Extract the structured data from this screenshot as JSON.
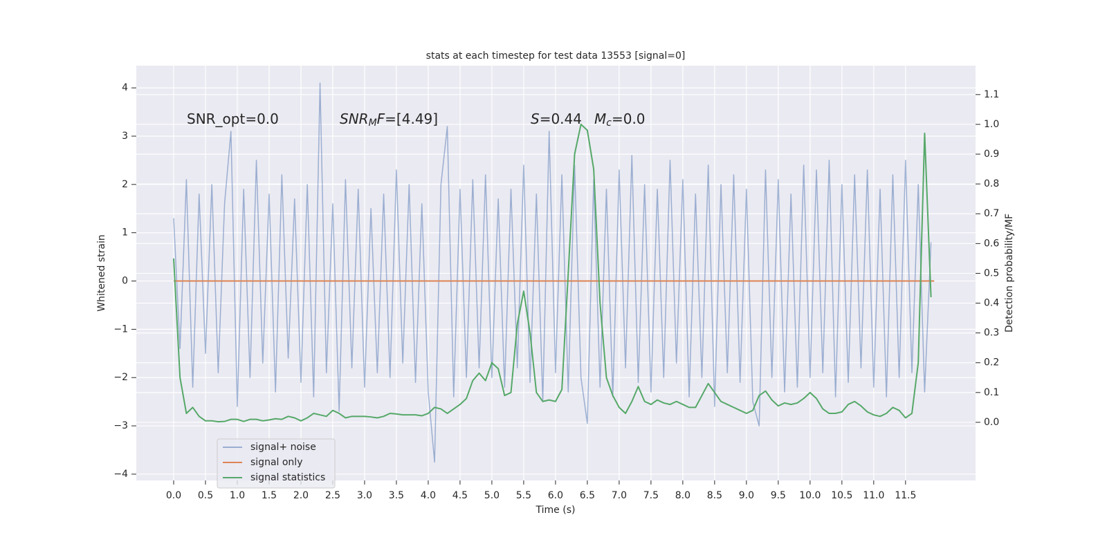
{
  "chart_data": {
    "type": "line",
    "title": "stats at each timestep for test data 13553 [signal=0]",
    "x_label": "Time (s)",
    "y_label": "Whitened strain",
    "y2_label": "Detection probability/MF",
    "background": "#eaeaf2",
    "grid": true,
    "grid_color": "#ffffff",
    "legend_position": "lower left",
    "annotations": [
      [
        {
          "text": "SNR_opt=0.0",
          "style": "normal"
        }
      ],
      [
        {
          "text": "SNR",
          "style": "italic"
        },
        {
          "text": "M",
          "style": "sub"
        },
        {
          "text": "F",
          "style": "italic"
        },
        {
          "text": "=[4.49]",
          "style": "normal"
        }
      ],
      [
        {
          "text": "S",
          "style": "italic"
        },
        {
          "text": "=0.44",
          "style": "normal"
        }
      ],
      [
        {
          "text": "M",
          "style": "italic"
        },
        {
          "text": "c",
          "style": "sub"
        },
        {
          "text": "=0.0",
          "style": "normal"
        }
      ]
    ],
    "xlim": [
      -0.587,
      12.6
    ],
    "xticks": [
      {
        "value": 0,
        "label": "0.0"
      },
      0.5,
      {
        "value": 1,
        "label": "1.0"
      },
      1.5,
      {
        "value": 2,
        "label": "2.0"
      },
      2.5,
      {
        "value": 3,
        "label": "3.0"
      },
      3.5,
      {
        "value": 4,
        "label": "4.0"
      },
      4.5,
      {
        "value": 5,
        "label": "5.0"
      },
      5.5,
      {
        "value": 6,
        "label": "6.0"
      },
      6.5,
      {
        "value": 7,
        "label": "7.0"
      },
      7.5,
      {
        "value": 8,
        "label": "8.0"
      },
      8.5,
      {
        "value": 9,
        "label": "9.0"
      },
      9.5,
      {
        "value": 10,
        "label": "10.0"
      },
      10.5,
      {
        "value": 11,
        "label": "11.0"
      },
      11.5
    ],
    "ylim": [
      -4.13,
      4.46
    ],
    "yticks": [
      {
        "value": -4,
        "label": "−4"
      },
      {
        "value": -3,
        "label": "−3"
      },
      {
        "value": -2,
        "label": "−2"
      },
      {
        "value": -1,
        "label": "−1"
      },
      0,
      1,
      2,
      3,
      4
    ],
    "y2lim": [
      -0.195,
      1.197
    ],
    "y2ticks": [
      {
        "value": 0,
        "label": "0.0"
      },
      0.1,
      0.2,
      0.3,
      0.4,
      0.5,
      0.6,
      0.7,
      0.8,
      0.9,
      {
        "value": 1,
        "label": "1.0"
      },
      1.1
    ],
    "x": [
      0,
      0.1,
      0.2,
      0.3,
      0.4,
      0.5,
      0.6,
      0.7,
      0.8,
      0.9,
      1,
      1.1,
      1.2,
      1.3,
      1.4,
      1.5,
      1.6,
      1.7,
      1.8,
      1.9,
      2,
      2.1,
      2.2,
      2.3,
      2.4,
      2.5,
      2.6,
      2.7,
      2.8,
      2.9,
      3,
      3.1,
      3.2,
      3.3,
      3.4,
      3.5,
      3.6,
      3.7,
      3.8,
      3.9,
      4,
      4.1,
      4.2,
      4.3,
      4.4,
      4.5,
      4.6,
      4.7,
      4.8,
      4.9,
      5,
      5.1,
      5.2,
      5.3,
      5.4,
      5.5,
      5.6,
      5.7,
      5.8,
      5.9,
      6,
      6.1,
      6.2,
      6.3,
      6.4,
      6.5,
      6.6,
      6.7,
      6.8,
      6.9,
      7,
      7.1,
      7.2,
      7.3,
      7.4,
      7.5,
      7.6,
      7.7,
      7.8,
      7.9,
      8,
      8.1,
      8.2,
      8.3,
      8.4,
      8.5,
      8.6,
      8.7,
      8.8,
      8.9,
      9,
      9.1,
      9.2,
      9.3,
      9.4,
      9.5,
      9.6,
      9.7,
      9.8,
      9.9,
      10,
      10.1,
      10.2,
      10.3,
      10.4,
      10.5,
      10.6,
      10.7,
      10.8,
      10.9,
      11,
      11.1,
      11.2,
      11.3,
      11.4,
      11.5,
      11.6,
      11.7,
      11.8,
      11.9
    ],
    "series": [
      {
        "name": "signal+ noise",
        "color": "#4c72b0",
        "alpha": 0.5,
        "values": [
          1.3,
          -1.4,
          2.1,
          -2.2,
          1.8,
          -1.5,
          2.0,
          -1.9,
          1.6,
          3.1,
          -2.6,
          1.9,
          -2.0,
          2.5,
          -1.7,
          1.8,
          -2.3,
          2.2,
          -1.6,
          1.7,
          -2.1,
          2.0,
          -2.4,
          4.1,
          -1.9,
          1.6,
          -2.7,
          2.1,
          -1.8,
          1.9,
          -2.2,
          1.5,
          -1.9,
          1.8,
          -2.0,
          2.3,
          -1.7,
          2.0,
          -2.1,
          1.6,
          -2.3,
          -3.75,
          2.0,
          3.2,
          -2.4,
          1.9,
          -2.0,
          2.1,
          -1.8,
          2.2,
          -2.0,
          1.7,
          -2.2,
          1.9,
          -1.8,
          2.4,
          -2.1,
          1.8,
          -2.5,
          3.1,
          -1.9,
          2.2,
          -2.3,
          2.4,
          -2.0,
          -2.95,
          2.1,
          -2.2,
          1.9,
          -2.4,
          2.3,
          -1.8,
          2.6,
          -2.1,
          2.0,
          -2.3,
          1.9,
          -2.0,
          2.5,
          -1.7,
          2.1,
          -2.4,
          1.8,
          -2.0,
          2.4,
          -2.6,
          2.0,
          -1.9,
          2.2,
          -2.1,
          1.9,
          -2.5,
          -3.0,
          2.3,
          -2.0,
          2.1,
          -2.3,
          1.8,
          -2.2,
          2.4,
          -2.0,
          2.3,
          -1.9,
          2.5,
          -2.4,
          2.0,
          -2.1,
          2.2,
          -1.8,
          2.3,
          -2.2,
          1.9,
          -2.4,
          2.2,
          -2.0,
          2.5,
          -1.9,
          2.0,
          -2.3,
          0.8
        ]
      },
      {
        "name": "signal only",
        "color": "#dd8452",
        "alpha": 1,
        "x": [
          0,
          11.95
        ],
        "values": [
          0,
          0
        ]
      },
      {
        "name": "signal statistics",
        "color": "#55a868",
        "alpha": 1,
        "axis": "y2",
        "values": [
          0.55,
          0.15,
          0.03,
          0.05,
          0.02,
          0.005,
          0.005,
          0.002,
          0.003,
          0.01,
          0.01,
          0.003,
          0.01,
          0.01,
          0.005,
          0.008,
          0.012,
          0.01,
          0.02,
          0.015,
          0.005,
          0.015,
          0.03,
          0.025,
          0.02,
          0.04,
          0.03,
          0.015,
          0.02,
          0.02,
          0.02,
          0.018,
          0.015,
          0.02,
          0.03,
          0.028,
          0.025,
          0.025,
          0.025,
          0.022,
          0.03,
          0.05,
          0.045,
          0.03,
          0.045,
          0.06,
          0.08,
          0.14,
          0.165,
          0.14,
          0.2,
          0.18,
          0.09,
          0.1,
          0.33,
          0.44,
          0.3,
          0.1,
          0.07,
          0.075,
          0.07,
          0.11,
          0.5,
          0.9,
          1.0,
          0.98,
          0.85,
          0.4,
          0.15,
          0.09,
          0.05,
          0.03,
          0.07,
          0.12,
          0.07,
          0.06,
          0.075,
          0.065,
          0.06,
          0.07,
          0.06,
          0.05,
          0.05,
          0.09,
          0.13,
          0.1,
          0.07,
          0.06,
          0.05,
          0.04,
          0.03,
          0.04,
          0.09,
          0.105,
          0.075,
          0.055,
          0.065,
          0.06,
          0.065,
          0.08,
          0.1,
          0.08,
          0.045,
          0.03,
          0.03,
          0.035,
          0.06,
          0.07,
          0.055,
          0.035,
          0.025,
          0.02,
          0.03,
          0.05,
          0.04,
          0.015,
          0.03,
          0.2,
          0.97,
          0.42
        ]
      }
    ]
  }
}
